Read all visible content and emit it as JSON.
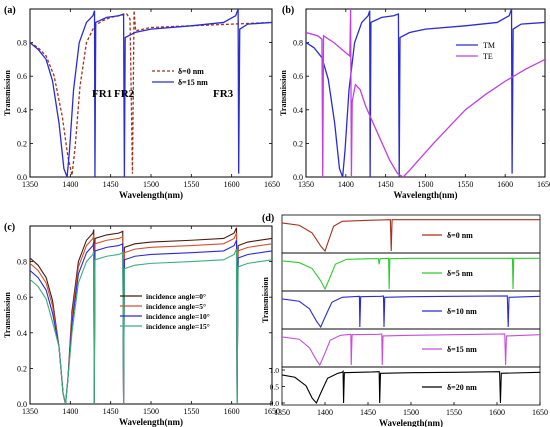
{
  "figure": {
    "panels": [
      {
        "id": "a",
        "label": "(a)"
      },
      {
        "id": "b",
        "label": "(b)"
      },
      {
        "id": "c",
        "label": "(c)"
      },
      {
        "id": "d",
        "label": "(d)"
      }
    ]
  },
  "chart_data": [
    {
      "id": "a",
      "type": "line",
      "panel_label": "(a)",
      "xlabel": "Wavelength(nm)",
      "ylabel": "Transmission",
      "xlim": [
        1350,
        1650
      ],
      "ylim": [
        0,
        1.0
      ],
      "xticks": [
        1350,
        1400,
        1450,
        1500,
        1550,
        1600,
        1650
      ],
      "yticks": [
        0.0,
        0.2,
        0.4,
        0.6,
        0.8
      ],
      "legend_position": "center-right",
      "annotations": [
        "FR1",
        "FR2",
        "FR3"
      ],
      "series": [
        {
          "name": "δ=0 nm",
          "color": "#a0321e",
          "dashed": true,
          "points": [
            [
              1350,
              0.8
            ],
            [
              1360,
              0.77
            ],
            [
              1370,
              0.72
            ],
            [
              1380,
              0.6
            ],
            [
              1390,
              0.36
            ],
            [
              1397,
              0.12
            ],
            [
              1402,
              0.01
            ],
            [
              1406,
              0.18
            ],
            [
              1412,
              0.54
            ],
            [
              1420,
              0.8
            ],
            [
              1430,
              0.9
            ],
            [
              1440,
              0.93
            ],
            [
              1450,
              0.95
            ],
            [
              1460,
              0.96
            ],
            [
              1470,
              0.97
            ],
            [
              1474,
              0.94
            ],
            [
              1477,
              0.02
            ],
            [
              1479,
              0.99
            ],
            [
              1481,
              0.87
            ],
            [
              1500,
              0.89
            ],
            [
              1550,
              0.9
            ],
            [
              1600,
              0.91
            ],
            [
              1650,
              0.92
            ]
          ]
        },
        {
          "name": "δ=15 nm",
          "color": "#2b2bd6",
          "dashed": false,
          "points": [
            [
              1350,
              0.8
            ],
            [
              1360,
              0.76
            ],
            [
              1370,
              0.7
            ],
            [
              1378,
              0.57
            ],
            [
              1386,
              0.32
            ],
            [
              1392,
              0.05
            ],
            [
              1396,
              0.0
            ],
            [
              1399,
              0.16
            ],
            [
              1404,
              0.52
            ],
            [
              1411,
              0.8
            ],
            [
              1420,
              0.92
            ],
            [
              1428,
              0.96
            ],
            [
              1430,
              0.99
            ],
            [
              1430.5,
              0.0
            ],
            [
              1431.5,
              0.92
            ],
            [
              1445,
              0.95
            ],
            [
              1460,
              0.96
            ],
            [
              1466,
              0.97
            ],
            [
              1467,
              0.0
            ],
            [
              1468,
              0.83
            ],
            [
              1480,
              0.86
            ],
            [
              1500,
              0.88
            ],
            [
              1550,
              0.9
            ],
            [
              1590,
              0.92
            ],
            [
              1605,
              0.96
            ],
            [
              1608,
              1.0
            ],
            [
              1608.7,
              0.02
            ],
            [
              1610,
              0.88
            ],
            [
              1620,
              0.91
            ],
            [
              1650,
              0.92
            ]
          ]
        }
      ]
    },
    {
      "id": "b",
      "type": "line",
      "panel_label": "(b)",
      "xlabel": "Wavelength(nm)",
      "ylabel": "Transmission",
      "xlim": [
        1350,
        1650
      ],
      "ylim": [
        0,
        1.0
      ],
      "xticks": [
        1350,
        1400,
        1450,
        1500,
        1550,
        1600,
        1650
      ],
      "yticks": [
        0.0,
        0.2,
        0.4,
        0.6,
        0.8
      ],
      "legend_position": "upper-right",
      "series": [
        {
          "name": "TM",
          "color": "#2b2bd6",
          "points": [
            [
              1350,
              0.8
            ],
            [
              1360,
              0.77
            ],
            [
              1370,
              0.71
            ],
            [
              1378,
              0.58
            ],
            [
              1386,
              0.32
            ],
            [
              1392,
              0.05
            ],
            [
              1396,
              0.0
            ],
            [
              1399,
              0.16
            ],
            [
              1404,
              0.52
            ],
            [
              1411,
              0.8
            ],
            [
              1420,
              0.92
            ],
            [
              1428,
              0.96
            ],
            [
              1430,
              0.99
            ],
            [
              1430.5,
              0.0
            ],
            [
              1431.5,
              0.92
            ],
            [
              1445,
              0.95
            ],
            [
              1460,
              0.96
            ],
            [
              1466,
              0.97
            ],
            [
              1467,
              0.0
            ],
            [
              1468,
              0.83
            ],
            [
              1480,
              0.86
            ],
            [
              1500,
              0.88
            ],
            [
              1550,
              0.9
            ],
            [
              1590,
              0.92
            ],
            [
              1605,
              0.96
            ],
            [
              1608,
              1.0
            ],
            [
              1608.7,
              0.02
            ],
            [
              1610,
              0.88
            ],
            [
              1620,
              0.91
            ],
            [
              1650,
              0.92
            ]
          ]
        },
        {
          "name": "TE",
          "color": "#c040e0",
          "points": [
            [
              1350,
              0.86
            ],
            [
              1365,
              0.84
            ],
            [
              1370,
              0.82
            ],
            [
              1371,
              0.0
            ],
            [
              1372,
              0.84
            ],
            [
              1385,
              0.8
            ],
            [
              1395,
              0.76
            ],
            [
              1405,
              0.72
            ],
            [
              1406,
              1.0
            ],
            [
              1407,
              0.0
            ],
            [
              1408,
              0.45
            ],
            [
              1412,
              0.55
            ],
            [
              1418,
              0.52
            ],
            [
              1425,
              0.42
            ],
            [
              1440,
              0.26
            ],
            [
              1455,
              0.1
            ],
            [
              1465,
              0.02
            ],
            [
              1472,
              0.0
            ],
            [
              1480,
              0.04
            ],
            [
              1495,
              0.12
            ],
            [
              1510,
              0.2
            ],
            [
              1530,
              0.3
            ],
            [
              1550,
              0.4
            ],
            [
              1575,
              0.49
            ],
            [
              1600,
              0.57
            ],
            [
              1625,
              0.64
            ],
            [
              1650,
              0.7
            ]
          ]
        }
      ]
    },
    {
      "id": "c",
      "type": "line",
      "panel_label": "(c)",
      "xlabel": "Wavelength(nm)",
      "ylabel": "Transmission",
      "xlim": [
        1350,
        1650
      ],
      "ylim": [
        0,
        1.0
      ],
      "xticks": [
        1350,
        1400,
        1450,
        1500,
        1550,
        1600,
        1650
      ],
      "yticks": [
        0.0,
        0.2,
        0.4,
        0.6,
        0.8
      ],
      "legend_position": "center-right",
      "series": [
        {
          "name": "incidence angle=0°",
          "color": "#4a1a10",
          "offset": 0.0
        },
        {
          "name": "incidence angle=5°",
          "color": "#d2522e",
          "offset": -0.03
        },
        {
          "name": "incidence angle=10°",
          "color": "#2b2bd6",
          "offset": -0.07
        },
        {
          "name": "incidence angle=15°",
          "color": "#3cae7a",
          "offset": -0.12
        }
      ],
      "base_curve": [
        [
          1350,
          0.82
        ],
        [
          1360,
          0.78
        ],
        [
          1370,
          0.71
        ],
        [
          1378,
          0.58
        ],
        [
          1386,
          0.32
        ],
        [
          1391,
          0.06
        ],
        [
          1394,
          0.0
        ],
        [
          1397,
          0.14
        ],
        [
          1402,
          0.52
        ],
        [
          1410,
          0.8
        ],
        [
          1420,
          0.92
        ],
        [
          1428,
          0.96
        ],
        [
          1429,
          0.98
        ],
        [
          1429.6,
          0.0
        ],
        [
          1430.6,
          0.93
        ],
        [
          1445,
          0.95
        ],
        [
          1460,
          0.96
        ],
        [
          1465,
          0.97
        ],
        [
          1466,
          0.0
        ],
        [
          1467,
          0.88
        ],
        [
          1480,
          0.9
        ],
        [
          1500,
          0.91
        ],
        [
          1550,
          0.92
        ],
        [
          1590,
          0.93
        ],
        [
          1603,
          0.96
        ],
        [
          1606,
          0.99
        ],
        [
          1606.7,
          0.0
        ],
        [
          1608,
          0.89
        ],
        [
          1620,
          0.91
        ],
        [
          1650,
          0.93
        ]
      ]
    },
    {
      "id": "d",
      "type": "line",
      "panel_label": "(d)",
      "xlabel": "Wavelength(nm)",
      "ylabel": "Transmission",
      "xlim": [
        1350,
        1650
      ],
      "ylim": [
        0,
        1.0
      ],
      "xticks": [
        1350,
        1400,
        1450,
        1500,
        1550,
        1600,
        1650
      ],
      "yticks": [
        0.0,
        0.5,
        1.0
      ],
      "stacked": true,
      "series": [
        {
          "name": "δ=0 nm",
          "color": "#a0321e",
          "points": [
            [
              1350,
              0.85
            ],
            [
              1370,
              0.78
            ],
            [
              1385,
              0.55
            ],
            [
              1395,
              0.15
            ],
            [
              1400,
              0.0
            ],
            [
              1404,
              0.3
            ],
            [
              1410,
              0.75
            ],
            [
              1420,
              0.9
            ],
            [
              1450,
              0.93
            ],
            [
              1476,
              0.95
            ],
            [
              1477,
              0.0
            ],
            [
              1478,
              0.95
            ],
            [
              1500,
              0.95
            ],
            [
              1550,
              0.95
            ],
            [
              1600,
              0.95
            ],
            [
              1650,
              0.95
            ]
          ]
        },
        {
          "name": "δ=5 nm",
          "color": "#2fcc2f",
          "points": [
            [
              1350,
              0.85
            ],
            [
              1370,
              0.8
            ],
            [
              1385,
              0.62
            ],
            [
              1395,
              0.25
            ],
            [
              1400,
              0.0
            ],
            [
              1405,
              0.3
            ],
            [
              1412,
              0.75
            ],
            [
              1425,
              0.9
            ],
            [
              1455,
              0.92
            ],
            [
              1462,
              0.92
            ],
            [
              1463,
              0.75
            ],
            [
              1464,
              0.92
            ],
            [
              1474,
              0.93
            ],
            [
              1474.6,
              0.0
            ],
            [
              1475.4,
              0.92
            ],
            [
              1500,
              0.93
            ],
            [
              1560,
              0.93
            ],
            [
              1618,
              0.93
            ],
            [
              1618.6,
              0.0
            ],
            [
              1619.5,
              0.93
            ],
            [
              1650,
              0.93
            ]
          ]
        },
        {
          "name": "δ=10 nm",
          "color": "#2b2bd6",
          "points": [
            [
              1350,
              0.85
            ],
            [
              1370,
              0.78
            ],
            [
              1382,
              0.55
            ],
            [
              1390,
              0.18
            ],
            [
              1395,
              0.0
            ],
            [
              1400,
              0.3
            ],
            [
              1408,
              0.75
            ],
            [
              1420,
              0.9
            ],
            [
              1440,
              0.93
            ],
            [
              1440.5,
              0.0
            ],
            [
              1441.5,
              0.92
            ],
            [
              1465,
              0.93
            ],
            [
              1468,
              0.94
            ],
            [
              1468.6,
              0.0
            ],
            [
              1469.5,
              0.9
            ],
            [
              1500,
              0.92
            ],
            [
              1550,
              0.93
            ],
            [
              1612,
              0.94
            ],
            [
              1613,
              0.0
            ],
            [
              1614,
              0.9
            ],
            [
              1650,
              0.93
            ]
          ]
        },
        {
          "name": "δ=15 nm",
          "color": "#c84ddd",
          "points": [
            [
              1350,
              0.85
            ],
            [
              1370,
              0.78
            ],
            [
              1382,
              0.52
            ],
            [
              1390,
              0.15
            ],
            [
              1394,
              0.0
            ],
            [
              1399,
              0.3
            ],
            [
              1406,
              0.75
            ],
            [
              1418,
              0.9
            ],
            [
              1430,
              0.93
            ],
            [
              1430.5,
              0.0
            ],
            [
              1431.5,
              0.92
            ],
            [
              1462,
              0.93
            ],
            [
              1466,
              0.94
            ],
            [
              1466.6,
              0.0
            ],
            [
              1467.5,
              0.88
            ],
            [
              1500,
              0.9
            ],
            [
              1550,
              0.92
            ],
            [
              1609,
              0.94
            ],
            [
              1610,
              0.0
            ],
            [
              1611,
              0.88
            ],
            [
              1650,
              0.92
            ]
          ]
        },
        {
          "name": "δ=20 nm",
          "color": "#000000",
          "points": [
            [
              1350,
              0.85
            ],
            [
              1365,
              0.78
            ],
            [
              1378,
              0.52
            ],
            [
              1385,
              0.15
            ],
            [
              1390,
              0.0
            ],
            [
              1395,
              0.3
            ],
            [
              1403,
              0.75
            ],
            [
              1415,
              0.9
            ],
            [
              1420,
              0.93
            ],
            [
              1421,
              0.96
            ],
            [
              1421.6,
              0.0
            ],
            [
              1422.5,
              0.92
            ],
            [
              1455,
              0.94
            ],
            [
              1463,
              0.95
            ],
            [
              1463.6,
              0.0
            ],
            [
              1464.5,
              0.9
            ],
            [
              1500,
              0.92
            ],
            [
              1550,
              0.93
            ],
            [
              1603,
              0.95
            ],
            [
              1604,
              0.0
            ],
            [
              1605,
              0.9
            ],
            [
              1650,
              0.93
            ]
          ]
        }
      ]
    }
  ]
}
